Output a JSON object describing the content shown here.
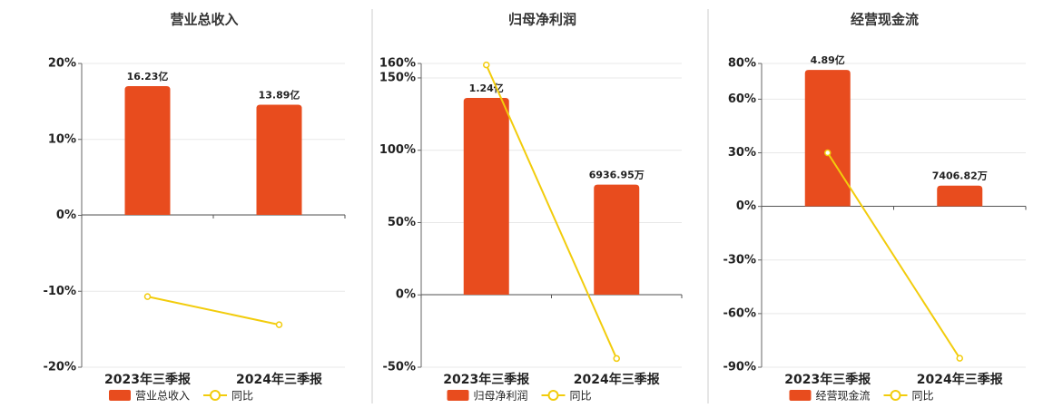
{
  "chart_data": [
    {
      "type": "bar_line",
      "title": "营业总收入",
      "categories": [
        "2023年三季报",
        "2024年三季报"
      ],
      "series": [
        {
          "name": "营业总收入",
          "color": "#e84c1e",
          "values": [
            1623000000,
            1389000000
          ],
          "value_labels": [
            "16.23亿",
            "13.89亿"
          ],
          "axis": "y2"
        },
        {
          "name": "同比",
          "color": "#f2cc0c",
          "values": [
            -10.7,
            -14.4
          ],
          "axis": "y"
        }
      ],
      "ylim": [
        -20,
        20
      ],
      "yticks": [
        {
          "value": -20,
          "label": "-20%"
        },
        {
          "value": -10,
          "label": "-10%"
        },
        {
          "value": 0,
          "label": "0%"
        },
        {
          "value": 10,
          "label": "10%"
        },
        {
          "value": 20,
          "label": "20%"
        }
      ],
      "y2lim": [
        -1920000000,
        1909000000
      ],
      "grid": true
    },
    {
      "type": "bar_line",
      "title": "归母净利润",
      "categories": [
        "2023年三季报",
        "2024年三季报"
      ],
      "series": [
        {
          "name": "归母净利润",
          "color": "#e84c1e",
          "values": [
            124000000,
            69369500
          ],
          "value_labels": [
            "1.24亿",
            "6936.95万"
          ],
          "axis": "y2"
        },
        {
          "name": "同比",
          "color": "#f2cc0c",
          "values": [
            159,
            -44
          ],
          "axis": "y"
        }
      ],
      "ylim": [
        -50,
        160
      ],
      "yticks": [
        {
          "value": -50,
          "label": "-50%"
        },
        {
          "value": 0,
          "label": "0%"
        },
        {
          "value": 50,
          "label": "50%"
        },
        {
          "value": 100,
          "label": "100%"
        },
        {
          "value": 150,
          "label": "150%"
        },
        {
          "value": 160,
          "label": "160%"
        }
      ],
      "y2lim": [
        -45700000,
        145700000
      ],
      "grid": true
    },
    {
      "type": "bar_line",
      "title": "经营现金流",
      "categories": [
        "2023年三季报",
        "2024年三季报"
      ],
      "series": [
        {
          "name": "经营现金流",
          "color": "#e84c1e",
          "values": [
            489000000,
            74068200
          ],
          "value_labels": [
            "4.89亿",
            "7406.82万"
          ],
          "axis": "y2"
        },
        {
          "name": "同比",
          "color": "#f2cc0c",
          "values": [
            30,
            -85
          ],
          "axis": "y"
        }
      ],
      "ylim": [
        -90,
        80
      ],
      "yticks": [
        {
          "value": -90,
          "label": "-90%"
        },
        {
          "value": -60,
          "label": "-60%"
        },
        {
          "value": -30,
          "label": "-30%"
        },
        {
          "value": 0,
          "label": "0%"
        },
        {
          "value": 30,
          "label": "30%"
        },
        {
          "value": 60,
          "label": "60%"
        },
        {
          "value": 80,
          "label": "80%"
        }
      ],
      "y2lim": [
        -577000000,
        512000000
      ],
      "grid": true
    }
  ]
}
